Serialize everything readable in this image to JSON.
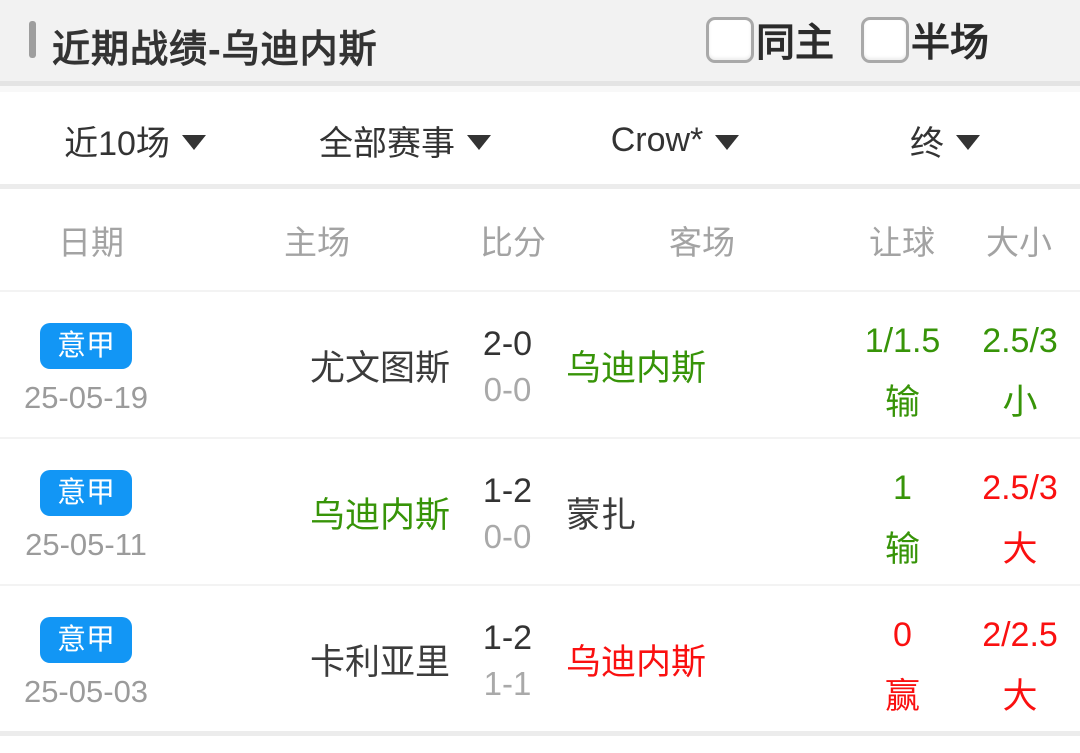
{
  "header": {
    "title": "近期战绩-乌迪内斯",
    "checkboxes": [
      {
        "label": "同主",
        "checked": false
      },
      {
        "label": "半场",
        "checked": false
      }
    ]
  },
  "filters": [
    {
      "label": "近10场"
    },
    {
      "label": "全部赛事"
    },
    {
      "label": "Crow*"
    },
    {
      "label": "终"
    }
  ],
  "table": {
    "columns": {
      "date": "日期",
      "home": "主场",
      "score": "比分",
      "away": "客场",
      "handicap": "让球",
      "ou": "大小"
    },
    "rows": [
      {
        "league": "意甲",
        "date": "25-05-19",
        "home": {
          "name": "尤文图斯",
          "color": "dark"
        },
        "score": {
          "full": "2-0",
          "half": "0-0"
        },
        "away": {
          "name": "乌迪内斯",
          "color": "green"
        },
        "handicap": {
          "line": "1/1.5",
          "result": "输",
          "color": "green"
        },
        "ou": {
          "line": "2.5/3",
          "result": "小",
          "color": "green"
        }
      },
      {
        "league": "意甲",
        "date": "25-05-11",
        "home": {
          "name": "乌迪内斯",
          "color": "green"
        },
        "score": {
          "full": "1-2",
          "half": "0-0"
        },
        "away": {
          "name": "蒙扎",
          "color": "dark"
        },
        "handicap": {
          "line": "1",
          "result": "输",
          "color": "green"
        },
        "ou": {
          "line": "2.5/3",
          "result": "大",
          "color": "red"
        }
      },
      {
        "league": "意甲",
        "date": "25-05-03",
        "home": {
          "name": "卡利亚里",
          "color": "dark"
        },
        "score": {
          "full": "1-2",
          "half": "1-1"
        },
        "away": {
          "name": "乌迪内斯",
          "color": "red"
        },
        "handicap": {
          "line": "0",
          "result": "赢",
          "color": "red"
        },
        "ou": {
          "line": "2/2.5",
          "result": "大",
          "color": "red"
        }
      }
    ]
  },
  "colors": {
    "green": "#379408",
    "red": "#fa1010",
    "badge_blue": "#1296f5",
    "header_band": "#f2f2f2"
  }
}
